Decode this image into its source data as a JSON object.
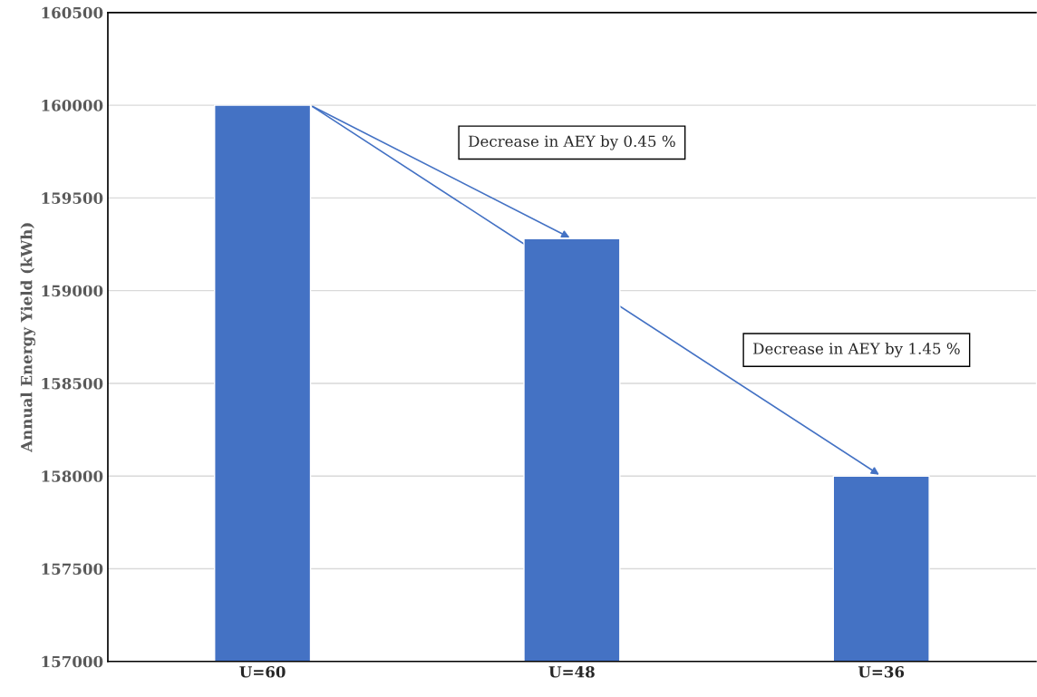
{
  "chart_data": {
    "type": "bar",
    "ylabel": "Annual Energy Yield (kWh)",
    "categories": [
      "U=60",
      "U=48",
      "U=36"
    ],
    "values": [
      160000,
      159280,
      158000
    ],
    "color": "#4472c4",
    "ylim": [
      157000,
      160500
    ],
    "yticks": [
      157000,
      157500,
      158000,
      158500,
      159000,
      159500,
      160000,
      160500
    ],
    "grid": "y",
    "annotations": [
      "Decrease in AEY by 0.45 %",
      "Decrease in AEY by 1.45 %"
    ]
  }
}
